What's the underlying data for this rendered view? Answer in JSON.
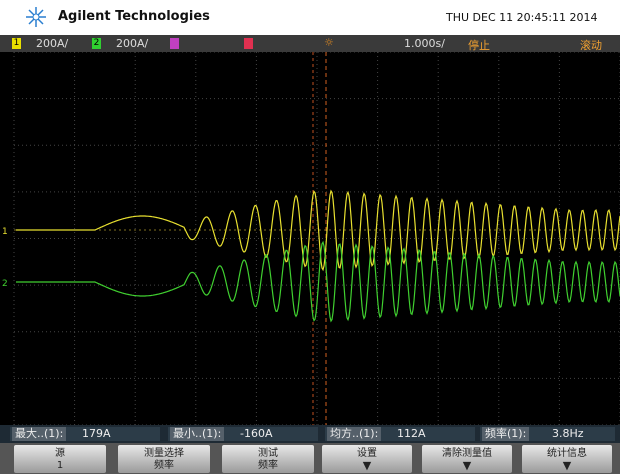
{
  "header": {
    "brand": "Agilent Technologies",
    "datetime": "THU DEC 11 20:45:11 2014"
  },
  "status_bar": {
    "channels": [
      {
        "number": "1",
        "scale": "200A/"
      },
      {
        "number": "2",
        "scale": "200A/"
      }
    ],
    "timebase": "1.000s/",
    "run_state": "停止",
    "mode": "滚动"
  },
  "measurements": [
    {
      "label": "最大..(1):",
      "value": "179A"
    },
    {
      "label": "最小..(1):",
      "value": "-160A"
    },
    {
      "label": "均方..(1):",
      "value": "112A"
    },
    {
      "label": "频率(1):",
      "value": "3.8Hz"
    }
  ],
  "softkeys": [
    {
      "label": "源",
      "value": "1"
    },
    {
      "label": "测量选择",
      "value": "频率"
    },
    {
      "label": "测试",
      "value": "频率"
    },
    {
      "label": "设置"
    },
    {
      "label": "清除测量值"
    },
    {
      "label": "统计信息"
    }
  ]
}
